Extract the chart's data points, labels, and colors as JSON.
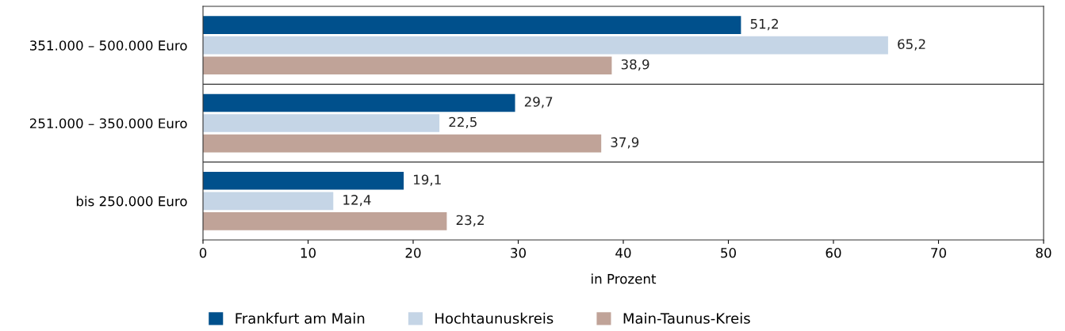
{
  "chart_data": {
    "type": "bar",
    "orientation": "horizontal",
    "categories": [
      "351.000 – 500.000 Euro",
      "251.000 – 350.000 Euro",
      "bis 250.000 Euro"
    ],
    "series": [
      {
        "name": "Frankfurt am Main",
        "color": "#00508c",
        "values": [
          51.2,
          29.7,
          19.1
        ],
        "value_labels": [
          "51,2",
          "29,7",
          "19,1"
        ]
      },
      {
        "name": "Hochtaunuskreis",
        "color": "#c5d5e6",
        "values": [
          65.2,
          22.5,
          12.4
        ],
        "value_labels": [
          "65,2",
          "22,5",
          "12,4"
        ]
      },
      {
        "name": "Main-Taunus-Kreis",
        "color": "#c0a398",
        "values": [
          38.9,
          37.9,
          23.2
        ],
        "value_labels": [
          "38,9",
          "37,9",
          "23,2"
        ]
      }
    ],
    "xlabel": "in Prozent",
    "xlim": [
      0,
      80
    ],
    "xticks": [
      0,
      10,
      20,
      30,
      40,
      50,
      60,
      70,
      80
    ],
    "grid": false,
    "legend": "bottom"
  }
}
